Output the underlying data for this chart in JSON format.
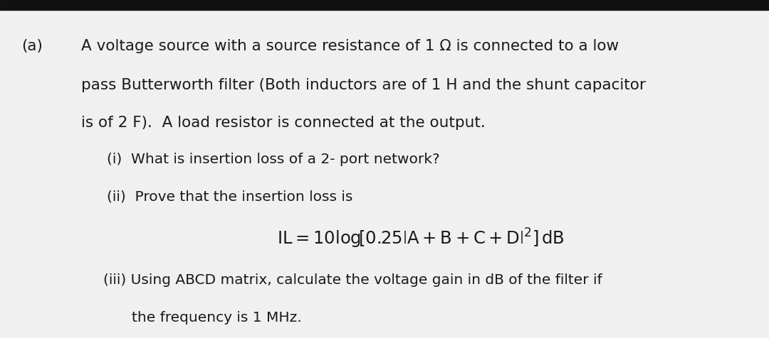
{
  "bg_color": "#f0f0f0",
  "text_color": "#1a1a1a",
  "header_bg": "#111111",
  "label_a": "(a)",
  "line1": "A voltage source with a source resistance of 1 Ω is connected to a low",
  "line2": "pass Butterworth filter (Both inductors are of 1 H and the shunt capacitor",
  "line3": "is of 2 F).  A load resistor is connected at the output.",
  "sub_i": "(i)  What is insertion loss of a 2- port network?",
  "sub_ii_text": "(ii)  Prove that the insertion loss is",
  "sub_iii": "(iii) Using ABCD matrix, calculate the voltage gain in dB of the filter if",
  "sub_iii_2": "the frequency is 1 MHz.",
  "main_fontsize": 15.5,
  "sub_fontsize": 14.5,
  "formula_fontsize": 16,
  "label_fontsize": 15.5
}
